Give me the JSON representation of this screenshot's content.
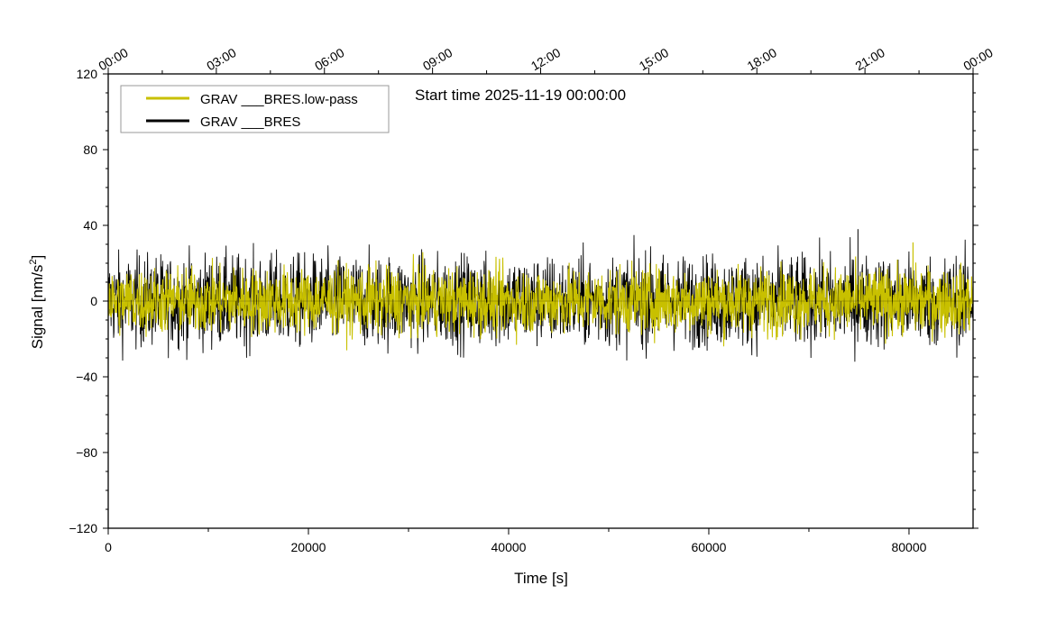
{
  "chart_data": {
    "type": "line",
    "title": "Start time 2025-11-19 00:00:00",
    "xlabel": "Time [s]",
    "ylabel": "Signal [nm/s",
    "ylabel_sup": "2",
    "ylabel_end": "]",
    "xlim": [
      0,
      86400
    ],
    "ylim": [
      -120,
      120
    ],
    "x_ticks": [
      0,
      20000,
      40000,
      60000,
      80000
    ],
    "x_tick_labels": [
      "0",
      "20000",
      "40000",
      "60000",
      "80000"
    ],
    "y_ticks": [
      120,
      80,
      40,
      0,
      -40,
      -80,
      -120
    ],
    "y_tick_labels": [
      "120",
      "80",
      "40",
      "0",
      "−40",
      "−80",
      "−120"
    ],
    "top_axis_times": [
      0,
      10800,
      21600,
      32400,
      43200,
      54000,
      64800,
      75600,
      86400
    ],
    "top_axis_labels": [
      "00:00",
      "03:00",
      "06:00",
      "09:00",
      "12:00",
      "15:00",
      "18:00",
      "21:00",
      "00:00"
    ],
    "legend": {
      "position": "top-left",
      "entries": [
        "GRAV ___BRES.low-pass",
        "GRAV ___BRES"
      ]
    },
    "series": [
      {
        "name": "GRAV ___BRES",
        "color": "#000000",
        "mean": 0,
        "envelope": [
          -22,
          22
        ],
        "max": 38,
        "min": -32
      },
      {
        "name": "GRAV ___BRES.low-pass",
        "color": "#c8c000",
        "mean": 0,
        "envelope": [
          -16,
          16
        ],
        "max": 31,
        "min": -26
      }
    ]
  }
}
